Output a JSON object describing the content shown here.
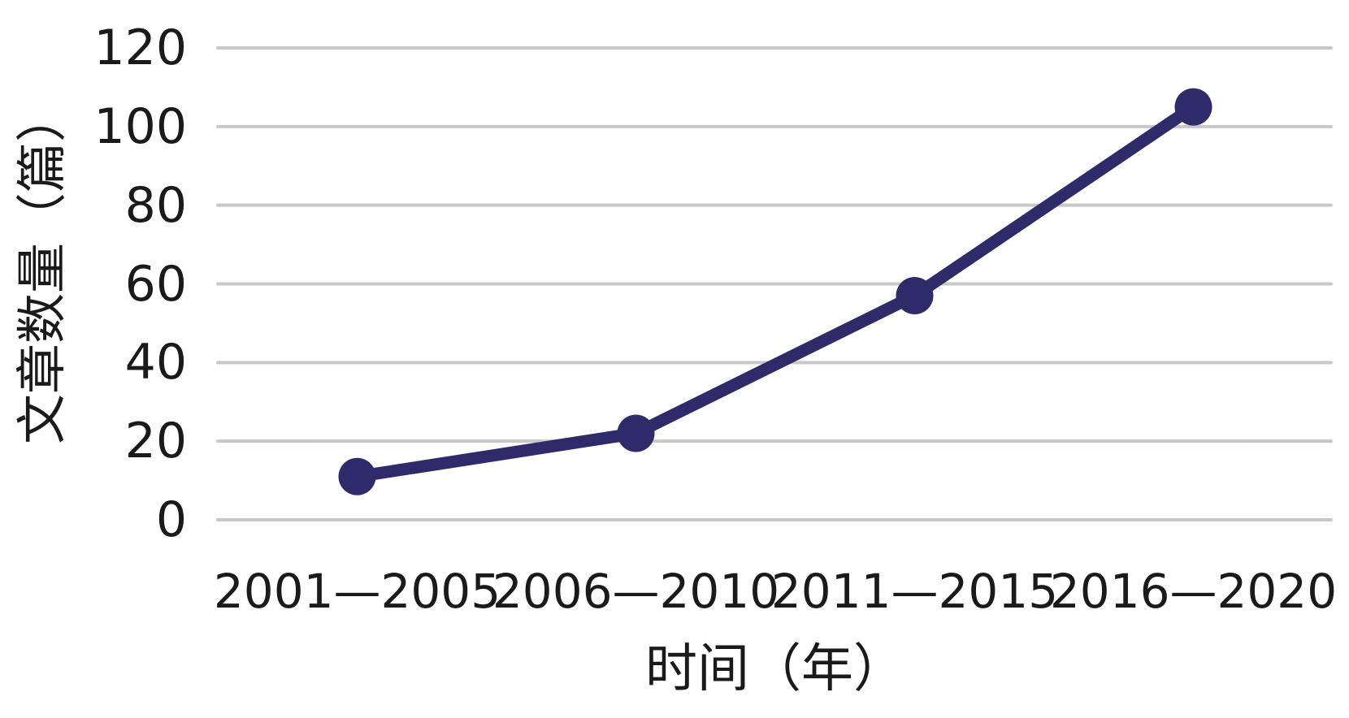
{
  "chart_data": {
    "type": "line",
    "title": "",
    "categories": [
      "2001—2005",
      "2006—2010",
      "2011—2015",
      "2016—2020"
    ],
    "values": [
      11,
      22,
      57,
      105
    ],
    "xlabel": "时间（年）",
    "ylabel": "文章数量（篇）",
    "ylim": [
      0,
      120
    ],
    "yticks": [
      0,
      20,
      40,
      60,
      80,
      100,
      120
    ],
    "grid": "horizontal-only",
    "legend": "none",
    "marker": "circle",
    "line_color": "#2f2b6a",
    "grid_color": "#c8c8c8",
    "text_color": "#1a1a1a",
    "background": "#ffffff"
  }
}
